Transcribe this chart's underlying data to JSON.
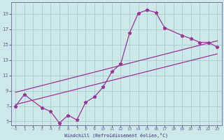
{
  "bg_color": "#cce8e8",
  "grid_color": "#aacccc",
  "line_color": "#993399",
  "spine_color": "#666699",
  "xlim": [
    -0.5,
    23.5
  ],
  "ylim": [
    4.5,
    20.5
  ],
  "xticks": [
    0,
    1,
    2,
    3,
    4,
    5,
    6,
    7,
    8,
    9,
    10,
    11,
    12,
    13,
    14,
    15,
    16,
    17,
    18,
    19,
    20,
    21,
    22,
    23
  ],
  "yticks": [
    5,
    7,
    9,
    11,
    13,
    15,
    17,
    19
  ],
  "xlabel": "Windchill (Refroidissement éolien,°C)",
  "curve_x": [
    0,
    1,
    3,
    4,
    5,
    6,
    7,
    8,
    9,
    10,
    11,
    12,
    13,
    14,
    15,
    16,
    17,
    19,
    20,
    21,
    22,
    23
  ],
  "curve_y": [
    7.0,
    8.5,
    6.8,
    6.3,
    4.8,
    5.8,
    5.2,
    7.5,
    8.2,
    9.5,
    11.5,
    12.5,
    16.5,
    19.1,
    19.5,
    19.2,
    17.2,
    16.2,
    15.8,
    15.3,
    15.3,
    14.7
  ],
  "line1_x": [
    0,
    23
  ],
  "line1_y": [
    7.2,
    13.8
  ],
  "line2_x": [
    0,
    23
  ],
  "line2_y": [
    8.8,
    15.5
  ]
}
